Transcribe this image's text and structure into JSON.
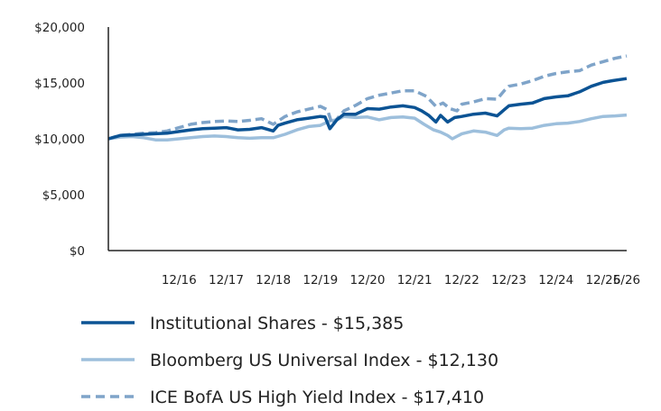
{
  "colors": {
    "institutional": "#0b5394",
    "bloomberg": "#9dbfdc",
    "ice": "#7fa4c9",
    "axis": "#222222"
  },
  "chart_data": {
    "type": "line",
    "title": "",
    "xlabel": "",
    "ylabel": "",
    "ylim": [
      0,
      20000
    ],
    "xlim": [
      2015.5,
      2026.5
    ],
    "y_ticks": [
      {
        "value": 0,
        "label": "$0"
      },
      {
        "value": 5000,
        "label": "$5,000"
      },
      {
        "value": 10000,
        "label": "$10,000"
      },
      {
        "value": 15000,
        "label": "$15,000"
      },
      {
        "value": 20000,
        "label": "$20,000"
      }
    ],
    "x_ticks": [
      {
        "value": 2017.0,
        "label": "12/16"
      },
      {
        "value": 2018.0,
        "label": "12/17"
      },
      {
        "value": 2019.0,
        "label": "12/18"
      },
      {
        "value": 2020.0,
        "label": "12/19"
      },
      {
        "value": 2021.0,
        "label": "12/20"
      },
      {
        "value": 2022.0,
        "label": "12/21"
      },
      {
        "value": 2023.0,
        "label": "12/22"
      },
      {
        "value": 2024.0,
        "label": "12/23"
      },
      {
        "value": 2025.0,
        "label": "12/24"
      },
      {
        "value": 2026.0,
        "label": "12/25"
      },
      {
        "value": 2026.5,
        "label": "6/26"
      }
    ],
    "legend_position": "bottom",
    "series": [
      {
        "name": "Institutional Shares - $15,385",
        "key": "institutional",
        "style": "solid",
        "points": [
          [
            2015.5,
            10000
          ],
          [
            2015.75,
            10300
          ],
          [
            2016.0,
            10350
          ],
          [
            2016.25,
            10400
          ],
          [
            2016.5,
            10450
          ],
          [
            2016.75,
            10500
          ],
          [
            2017.0,
            10650
          ],
          [
            2017.25,
            10800
          ],
          [
            2017.5,
            10900
          ],
          [
            2017.75,
            10950
          ],
          [
            2018.0,
            11000
          ],
          [
            2018.25,
            10800
          ],
          [
            2018.5,
            10850
          ],
          [
            2018.75,
            11000
          ],
          [
            2019.0,
            10700
          ],
          [
            2019.1,
            11200
          ],
          [
            2019.25,
            11400
          ],
          [
            2019.5,
            11700
          ],
          [
            2019.75,
            11850
          ],
          [
            2020.0,
            12000
          ],
          [
            2020.1,
            11950
          ],
          [
            2020.2,
            10900
          ],
          [
            2020.35,
            11700
          ],
          [
            2020.5,
            12200
          ],
          [
            2020.75,
            12200
          ],
          [
            2021.0,
            12700
          ],
          [
            2021.25,
            12650
          ],
          [
            2021.5,
            12850
          ],
          [
            2021.75,
            12950
          ],
          [
            2022.0,
            12800
          ],
          [
            2022.15,
            12500
          ],
          [
            2022.3,
            12100
          ],
          [
            2022.45,
            11500
          ],
          [
            2022.55,
            12100
          ],
          [
            2022.7,
            11500
          ],
          [
            2022.85,
            11900
          ],
          [
            2023.0,
            12000
          ],
          [
            2023.25,
            12200
          ],
          [
            2023.5,
            12300
          ],
          [
            2023.75,
            12050
          ],
          [
            2023.9,
            12600
          ],
          [
            2024.0,
            12950
          ],
          [
            2024.25,
            13100
          ],
          [
            2024.5,
            13200
          ],
          [
            2024.75,
            13600
          ],
          [
            2025.0,
            13750
          ],
          [
            2025.25,
            13850
          ],
          [
            2025.5,
            14200
          ],
          [
            2025.75,
            14700
          ],
          [
            2026.0,
            15050
          ],
          [
            2026.2,
            15200
          ],
          [
            2026.35,
            15300
          ],
          [
            2026.5,
            15385
          ]
        ]
      },
      {
        "name": "Bloomberg US Universal Index - $12,130",
        "key": "bloomberg",
        "style": "solid",
        "points": [
          [
            2015.5,
            10000
          ],
          [
            2015.75,
            10150
          ],
          [
            2016.0,
            10200
          ],
          [
            2016.25,
            10100
          ],
          [
            2016.5,
            9900
          ],
          [
            2016.75,
            9900
          ],
          [
            2017.0,
            10000
          ],
          [
            2017.25,
            10100
          ],
          [
            2017.5,
            10200
          ],
          [
            2017.75,
            10250
          ],
          [
            2018.0,
            10200
          ],
          [
            2018.25,
            10100
          ],
          [
            2018.5,
            10050
          ],
          [
            2018.75,
            10100
          ],
          [
            2019.0,
            10100
          ],
          [
            2019.25,
            10400
          ],
          [
            2019.5,
            10800
          ],
          [
            2019.75,
            11100
          ],
          [
            2020.0,
            11200
          ],
          [
            2020.2,
            11600
          ],
          [
            2020.35,
            11700
          ],
          [
            2020.5,
            12000
          ],
          [
            2020.75,
            11900
          ],
          [
            2021.0,
            11950
          ],
          [
            2021.25,
            11700
          ],
          [
            2021.5,
            11900
          ],
          [
            2021.75,
            11950
          ],
          [
            2022.0,
            11850
          ],
          [
            2022.2,
            11300
          ],
          [
            2022.4,
            10800
          ],
          [
            2022.55,
            10600
          ],
          [
            2022.7,
            10300
          ],
          [
            2022.8,
            10000
          ],
          [
            2023.0,
            10450
          ],
          [
            2023.25,
            10700
          ],
          [
            2023.5,
            10600
          ],
          [
            2023.75,
            10300
          ],
          [
            2023.9,
            10800
          ],
          [
            2024.0,
            10950
          ],
          [
            2024.25,
            10900
          ],
          [
            2024.5,
            10950
          ],
          [
            2024.75,
            11200
          ],
          [
            2025.0,
            11350
          ],
          [
            2025.25,
            11400
          ],
          [
            2025.5,
            11550
          ],
          [
            2025.75,
            11800
          ],
          [
            2026.0,
            12000
          ],
          [
            2026.25,
            12050
          ],
          [
            2026.5,
            12130
          ]
        ]
      },
      {
        "name": "ICE BofA US High Yield Index - $17,410",
        "key": "ice",
        "style": "dashed",
        "points": [
          [
            2015.5,
            10000
          ],
          [
            2015.75,
            10300
          ],
          [
            2016.0,
            10400
          ],
          [
            2016.25,
            10500
          ],
          [
            2016.5,
            10550
          ],
          [
            2016.75,
            10700
          ],
          [
            2017.0,
            11000
          ],
          [
            2017.25,
            11300
          ],
          [
            2017.5,
            11450
          ],
          [
            2017.75,
            11550
          ],
          [
            2018.0,
            11600
          ],
          [
            2018.25,
            11550
          ],
          [
            2018.5,
            11650
          ],
          [
            2018.75,
            11800
          ],
          [
            2019.0,
            11300
          ],
          [
            2019.25,
            12000
          ],
          [
            2019.5,
            12400
          ],
          [
            2019.75,
            12650
          ],
          [
            2020.0,
            12900
          ],
          [
            2020.15,
            12600
          ],
          [
            2020.25,
            11300
          ],
          [
            2020.5,
            12500
          ],
          [
            2020.75,
            13000
          ],
          [
            2021.0,
            13600
          ],
          [
            2021.25,
            13900
          ],
          [
            2021.5,
            14100
          ],
          [
            2021.75,
            14300
          ],
          [
            2022.0,
            14300
          ],
          [
            2022.25,
            13800
          ],
          [
            2022.45,
            12900
          ],
          [
            2022.6,
            13200
          ],
          [
            2022.75,
            12700
          ],
          [
            2022.9,
            12500
          ],
          [
            2023.0,
            13100
          ],
          [
            2023.25,
            13300
          ],
          [
            2023.5,
            13600
          ],
          [
            2023.75,
            13550
          ],
          [
            2023.9,
            14300
          ],
          [
            2024.0,
            14700
          ],
          [
            2024.25,
            14900
          ],
          [
            2024.5,
            15200
          ],
          [
            2024.75,
            15600
          ],
          [
            2025.0,
            15850
          ],
          [
            2025.25,
            16000
          ],
          [
            2025.5,
            16100
          ],
          [
            2025.75,
            16600
          ],
          [
            2026.0,
            16900
          ],
          [
            2026.25,
            17200
          ],
          [
            2026.5,
            17410
          ]
        ]
      }
    ]
  }
}
